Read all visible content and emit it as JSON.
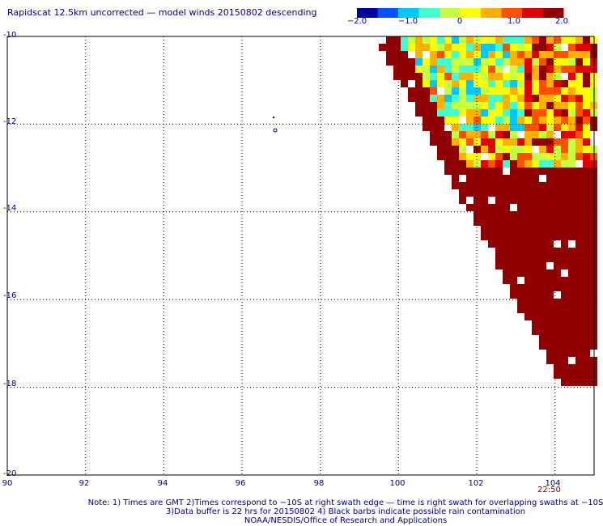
{
  "title": "Rapidscat 12.5km uncorrected — model winds 20150802 descending",
  "colorbar": {
    "ticks": [
      "−2.0",
      "−1.0",
      "0",
      "1.0",
      "2.0"
    ],
    "tick_values": [
      -2.0,
      -1.0,
      0,
      1.0,
      2.0
    ],
    "colors": [
      "#0000a0",
      "#0050ff",
      "#00c8ff",
      "#40ffd0",
      "#c8ff40",
      "#ffff00",
      "#ffb000",
      "#ff5000",
      "#e00000",
      "#900000"
    ]
  },
  "axes": {
    "lat_labels": [
      "-10",
      "-12",
      "-14",
      "-16",
      "-18",
      "-20"
    ],
    "lon_labels": [
      "90",
      "92",
      "94",
      "96",
      "98",
      "100",
      "102",
      "104"
    ],
    "lat_range": [
      -10,
      -20
    ],
    "lon_range": [
      90,
      105
    ]
  },
  "swath_time": "22:50",
  "notes": [
    "Note: 1) Times are GMT 2)Times correspond to −10S at right swath edge — time is right swath for overlapping swaths at −10S",
    "3)Data buffer is 22 hrs for 20150802 4) Black barbs indicate possible rain contamination",
    "NOAA/NESDIS/Office of Research and Applications"
  ]
}
